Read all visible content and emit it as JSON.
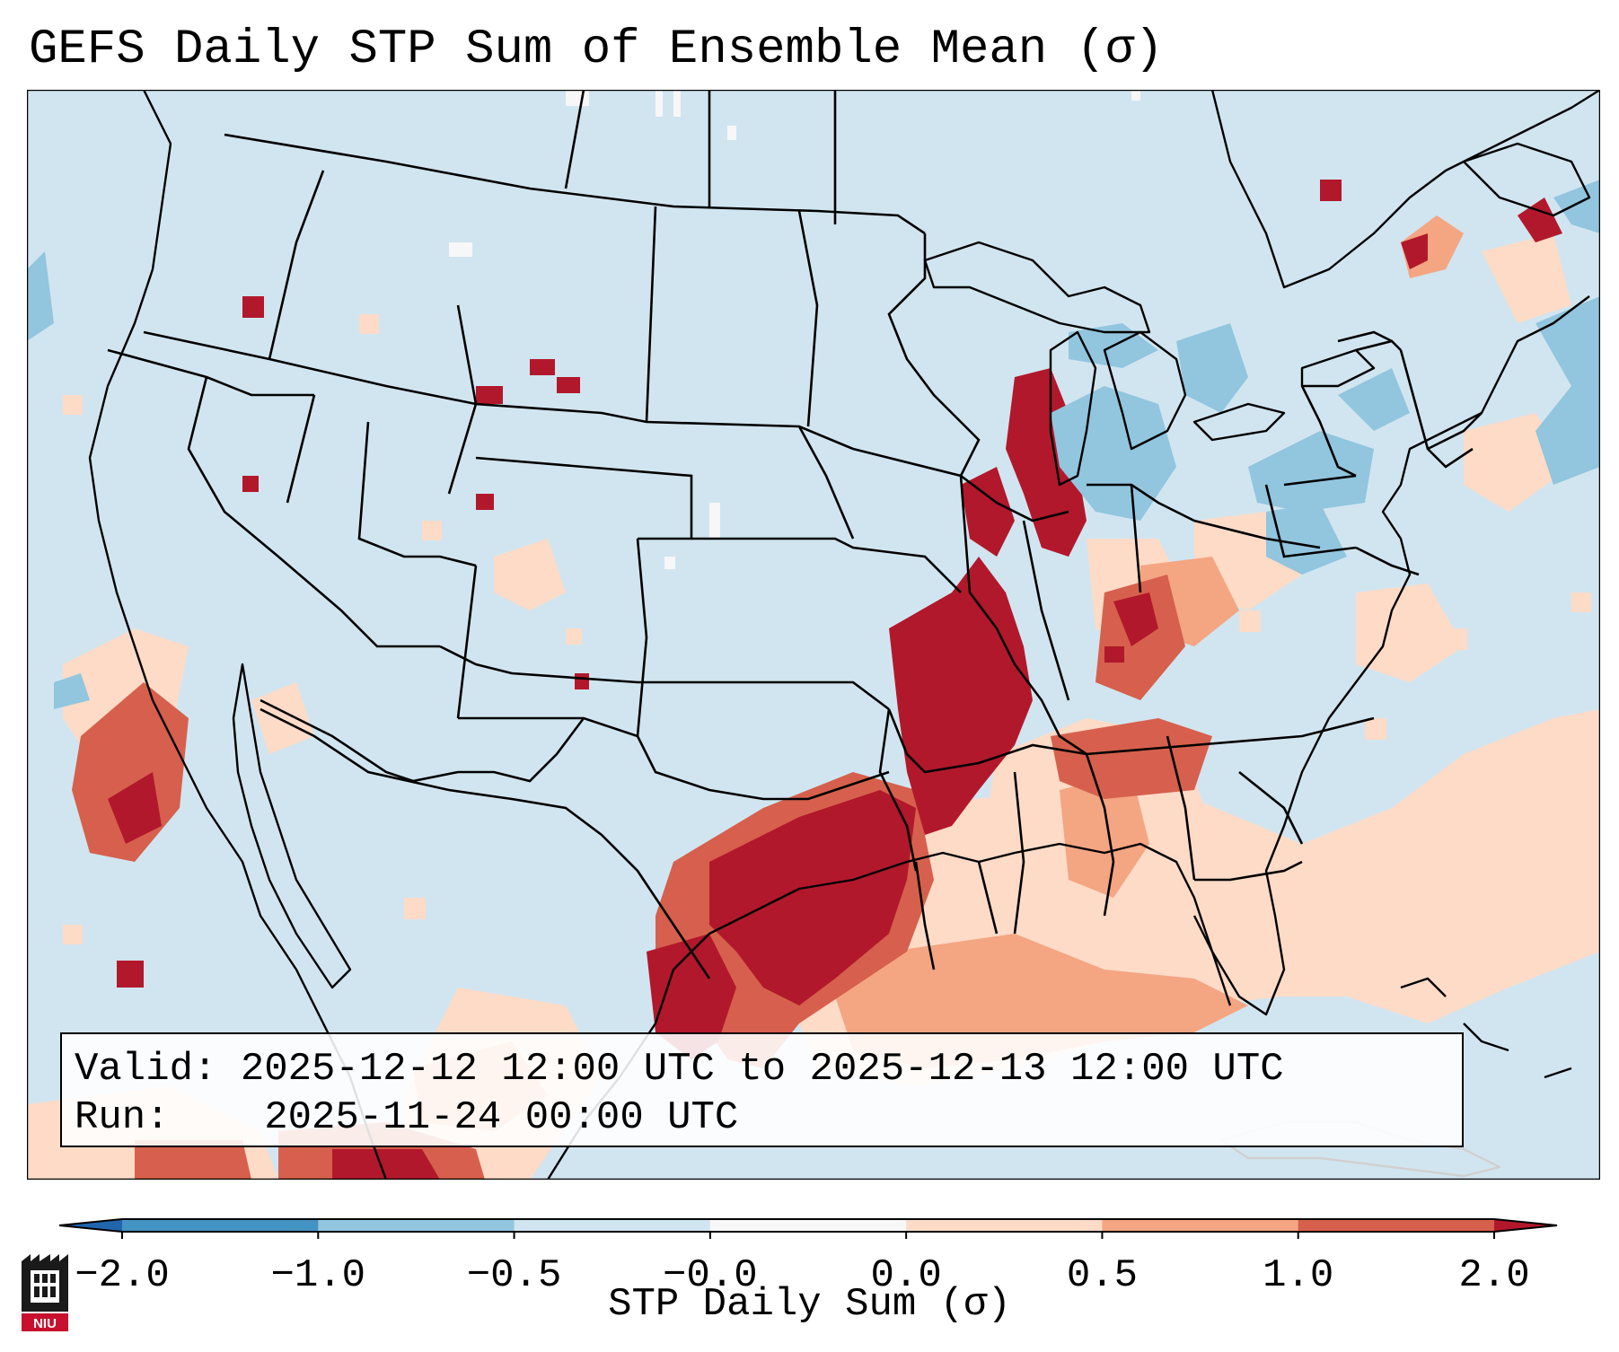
{
  "title": "GEFS Daily STP Sum of Ensemble Mean (σ)",
  "info": {
    "valid_label": "Valid:",
    "valid_value": "2025-12-12 12:00 UTC to 2025-12-13 12:00 UTC",
    "run_label": "Run:",
    "run_value": "2025-11-24 00:00 UTC"
  },
  "colorbar": {
    "label": "STP Daily Sum (σ)",
    "ticks": [
      "−2.0",
      "−1.0",
      "−0.5",
      "−0.0",
      "0.0",
      "0.5",
      "1.0",
      "2.0"
    ],
    "bins": [
      {
        "range": "< -2.0",
        "color": "#2166ac"
      },
      {
        "range": "-2.0 to -1.0",
        "color": "#4393c3"
      },
      {
        "range": "-1.0 to -0.5",
        "color": "#92c5de"
      },
      {
        "range": "-0.5 to -0.0",
        "color": "#d1e5f0"
      },
      {
        "range": "-0.0 to 0.0",
        "color": "#f7f7f7"
      },
      {
        "range": "0.0 to 0.5",
        "color": "#fddbc7"
      },
      {
        "range": "0.5 to 1.0",
        "color": "#f4a582"
      },
      {
        "range": "1.0 to 2.0",
        "color": "#d6604d"
      },
      {
        "range": "> 2.0",
        "color": "#b2182b"
      }
    ]
  },
  "map": {
    "background_color": "#d1e5f0",
    "regions": [
      {
        "name": "southern plains to mid-mississippi valley",
        "level": "> 2.0"
      },
      {
        "name": "western lake michigan / illinois",
        "level": "> 2.0"
      },
      {
        "name": "ohio valley / tennessee",
        "level": "1.0 to 2.0"
      },
      {
        "name": "gulf coast and gulf of mexico",
        "level": "0.0 to 0.5"
      },
      {
        "name": "eastern pacific off baja",
        "level": "1.0 to 2.0"
      },
      {
        "name": "great lakes",
        "level": "-1.0 to -0.5"
      }
    ]
  },
  "logo": {
    "text": "NIU"
  }
}
